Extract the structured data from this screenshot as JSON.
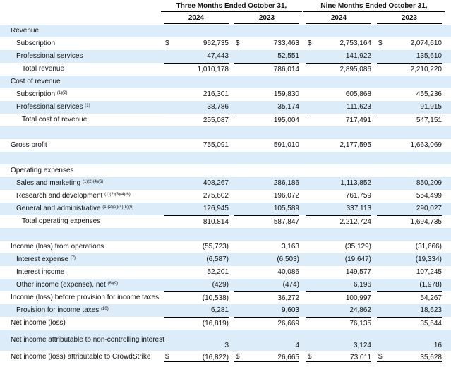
{
  "header": {
    "periods": [
      {
        "title": "Three Months Ended October 31,",
        "years": [
          "2024",
          "2023"
        ]
      },
      {
        "title": "Nine Months Ended October 31,",
        "years": [
          "2024",
          "2023"
        ]
      }
    ]
  },
  "rows": [
    {
      "label": "Revenue"
    },
    {
      "label": "Subscription",
      "currency": "$",
      "values": [
        "962,735",
        "733,463",
        "2,753,164",
        "2,074,610"
      ]
    },
    {
      "label": "Professional services",
      "values": [
        "47,443",
        "52,551",
        "141,922",
        "135,610"
      ]
    },
    {
      "label": "Total revenue",
      "values": [
        "1,010,178",
        "786,014",
        "2,895,086",
        "2,210,220"
      ]
    },
    {
      "label": "Cost of revenue"
    },
    {
      "label": "Subscription",
      "note": "(1)(2)",
      "values": [
        "216,301",
        "159,830",
        "605,868",
        "455,236"
      ]
    },
    {
      "label": "Professional services",
      "note": "(1)",
      "values": [
        "38,786",
        "35,174",
        "111,623",
        "91,915"
      ]
    },
    {
      "label": "Total cost of revenue",
      "values": [
        "255,087",
        "195,004",
        "717,491",
        "547,151"
      ]
    },
    {
      "label": "Gross profit",
      "values": [
        "755,091",
        "591,010",
        "2,177,595",
        "1,663,069"
      ]
    },
    {
      "label": "Operating expenses"
    },
    {
      "label": "Sales and marketing",
      "note": "(1)(2)(4)(6)",
      "values": [
        "408,267",
        "286,186",
        "1,113,852",
        "850,209"
      ]
    },
    {
      "label": "Research and development",
      "note": "(1)(2)(3)(4)(6)",
      "values": [
        "275,602",
        "196,072",
        "761,759",
        "554,499"
      ]
    },
    {
      "label": "General and administrative",
      "note": "(1)(2)(3)(4)(5)(6)",
      "values": [
        "126,945",
        "105,589",
        "337,113",
        "290,027"
      ]
    },
    {
      "label": "Total operating expenses",
      "values": [
        "810,814",
        "587,847",
        "2,212,724",
        "1,694,735"
      ]
    },
    {
      "label": "Income (loss) from operations",
      "values": [
        "(55,723)",
        "3,163",
        "(35,129)",
        "(31,666)"
      ]
    },
    {
      "label": "Interest expense",
      "note": "(7)",
      "values": [
        "(6,587)",
        "(6,503)",
        "(19,647)",
        "(19,334)"
      ]
    },
    {
      "label": "Interest income",
      "values": [
        "52,201",
        "40,086",
        "149,577",
        "107,245"
      ]
    },
    {
      "label": "Other income (expense), net",
      "note": "(8)(9)",
      "values": [
        "(429)",
        "(474)",
        "6,196",
        "(1,978)"
      ]
    },
    {
      "label": "Income (loss) before provision for income taxes",
      "values": [
        "(10,538)",
        "36,272",
        "100,997",
        "54,267"
      ]
    },
    {
      "label": "Provision for income taxes",
      "note": "(10)",
      "values": [
        "6,281",
        "9,603",
        "24,862",
        "18,623"
      ]
    },
    {
      "label": "Net income (loss)",
      "values": [
        "(16,819)",
        "26,669",
        "76,135",
        "35,644"
      ]
    },
    {
      "label": "Net income attributable to non-controlling interest",
      "values": [
        "3",
        "4",
        "3,124",
        "16"
      ]
    },
    {
      "label": "Net income (loss) attributable to CrowdStrike",
      "currency": "$",
      "values": [
        "(16,822)",
        "26,665",
        "73,011",
        "35,628"
      ]
    }
  ]
}
